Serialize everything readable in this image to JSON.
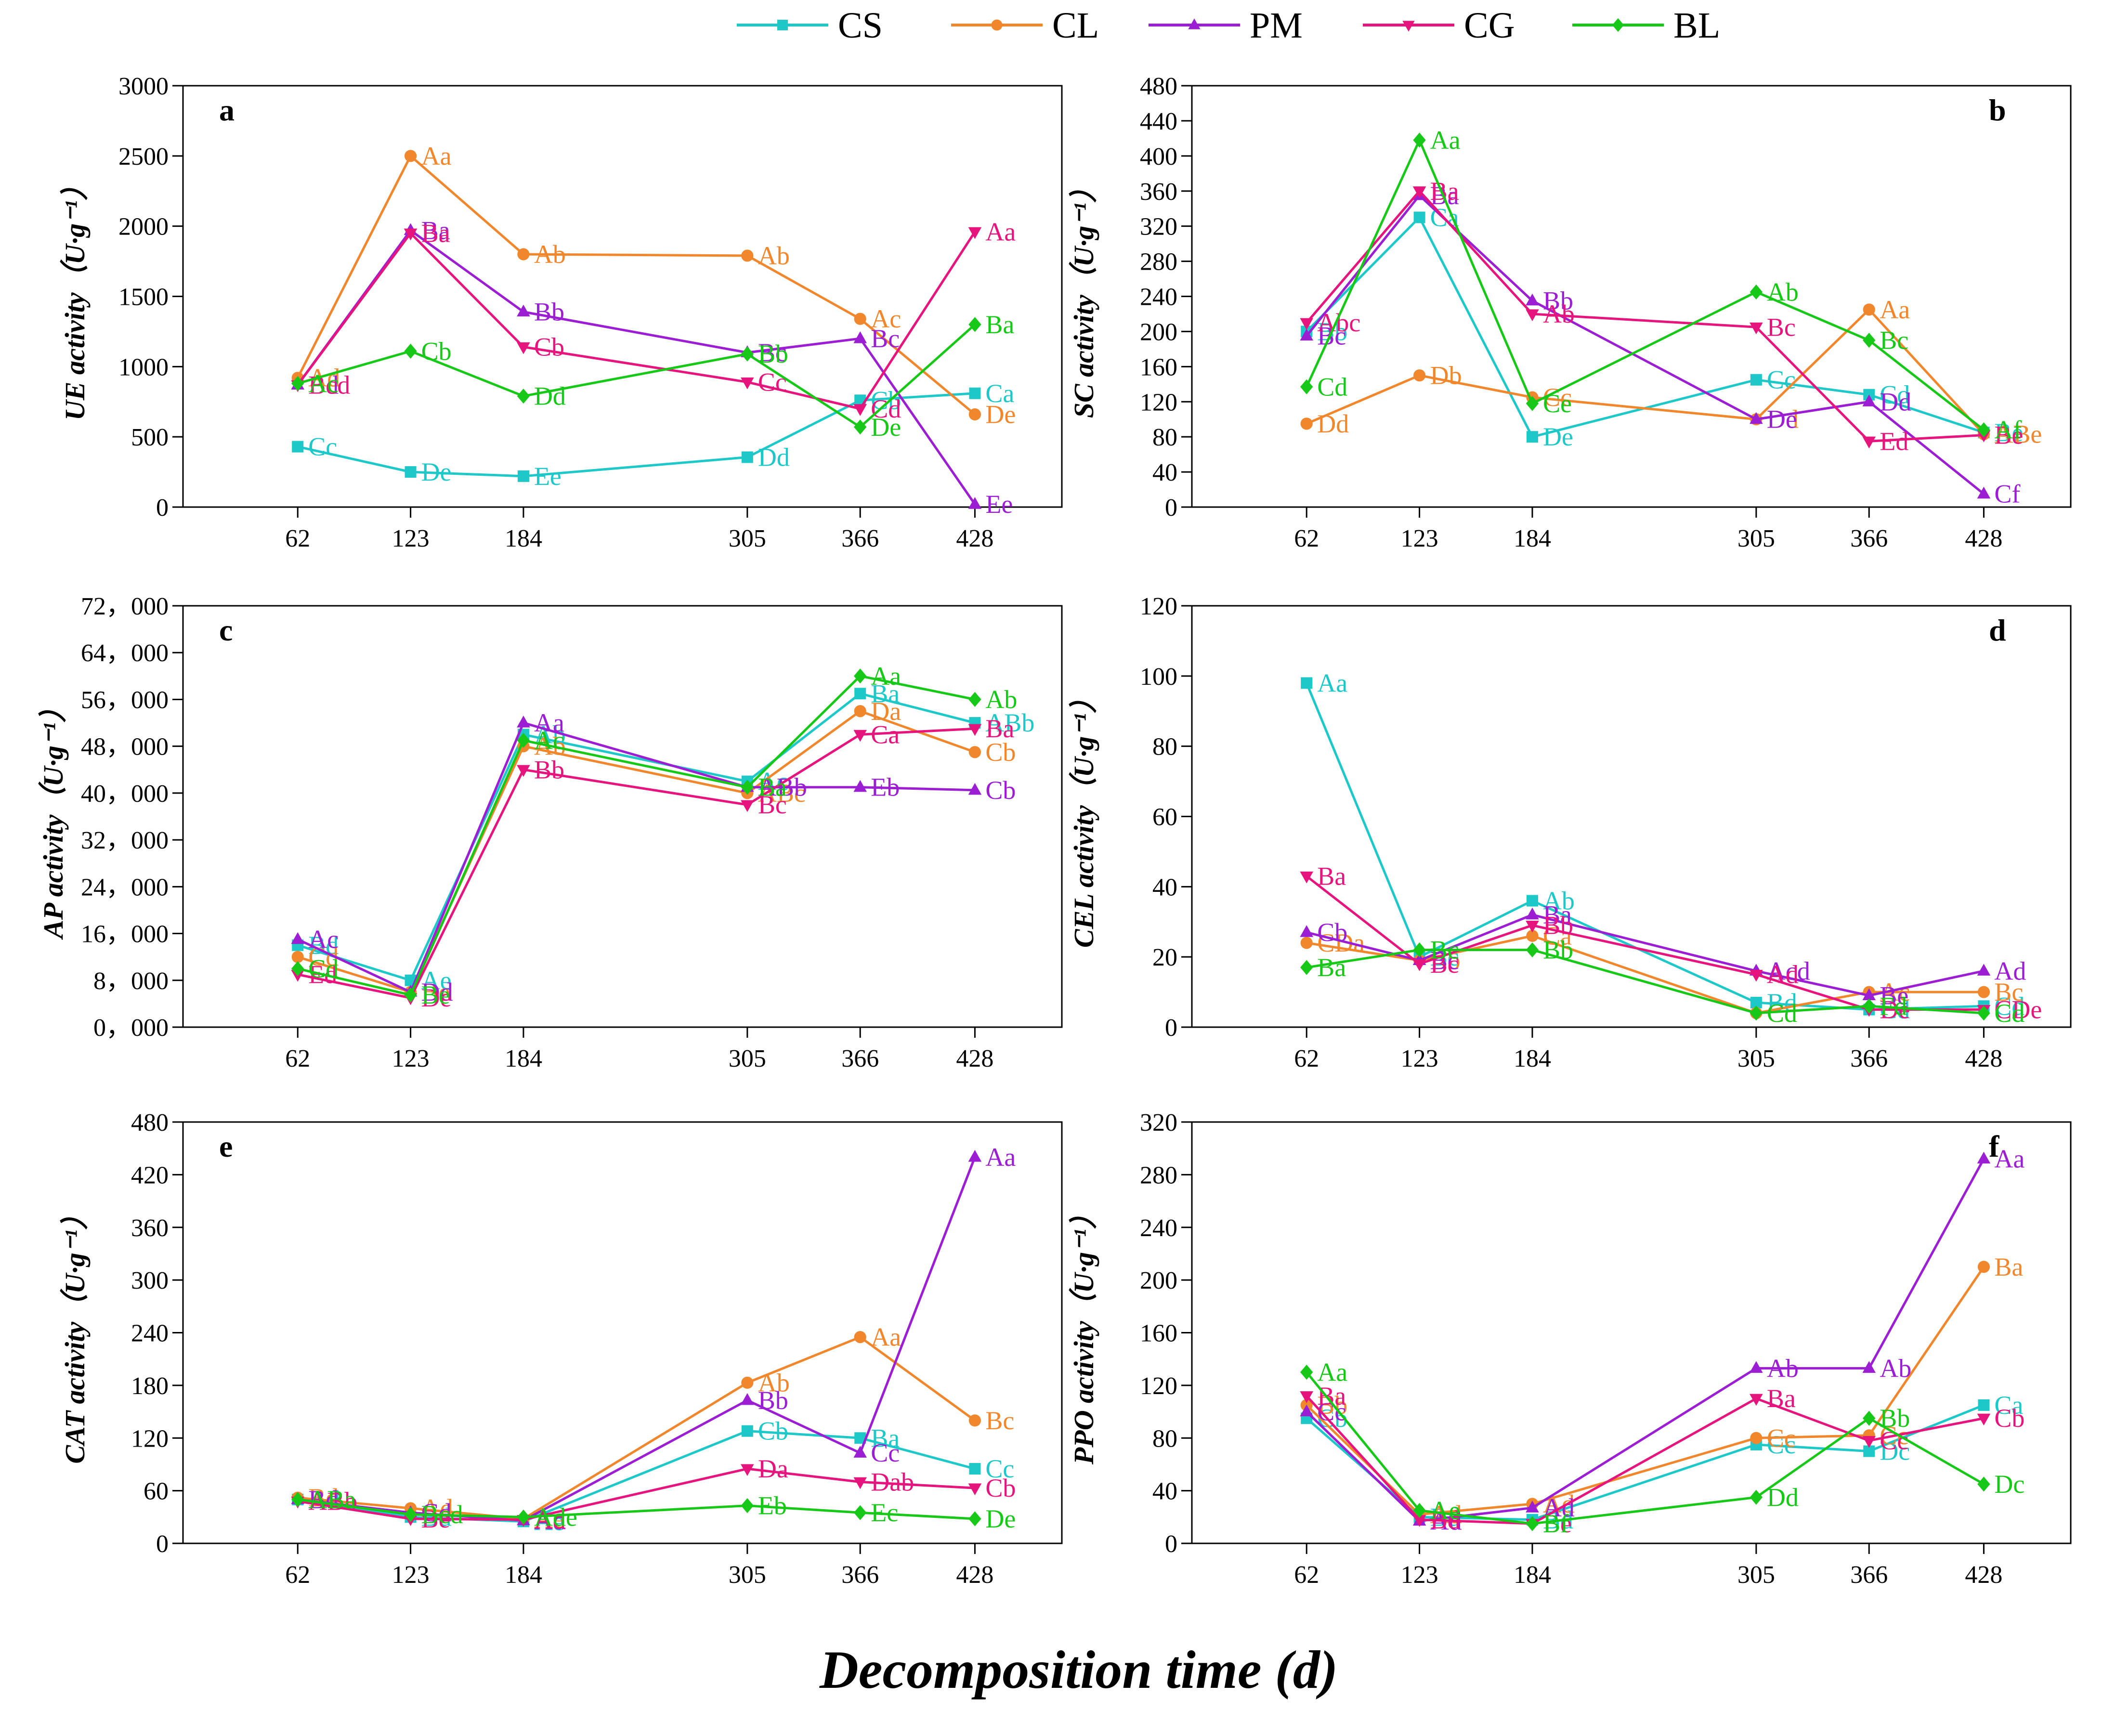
{
  "legend": {
    "items": [
      {
        "name": "CS",
        "color": "#1ec8c8",
        "marker": "square"
      },
      {
        "name": "CL",
        "color": "#f0872d",
        "marker": "circle"
      },
      {
        "name": "PM",
        "color": "#9b1ed2",
        "marker": "triangle-up"
      },
      {
        "name": "CG",
        "color": "#e6147d",
        "marker": "triangle-down"
      },
      {
        "name": "BL",
        "color": "#18c818",
        "marker": "diamond"
      }
    ]
  },
  "xlabel": "Decomposition time (d)",
  "chart_data": [
    {
      "type": "line",
      "panel": "a",
      "ylabel": "UE activity（U·g⁻¹）",
      "x": [
        62,
        123,
        184,
        305,
        366,
        428
      ],
      "xlim": [
        0,
        475
      ],
      "ylim": [
        0,
        3000
      ],
      "yticks": [
        0,
        500,
        1000,
        1500,
        2000,
        2500,
        3000
      ],
      "ytick_labels": [
        "0",
        "500",
        "1000",
        "1500",
        "2000",
        "2500",
        "3000"
      ],
      "series": [
        {
          "name": "CS",
          "values": [
            430,
            250,
            220,
            355,
            760,
            810
          ],
          "labels": [
            "Cc",
            "De",
            "Ee",
            "Dd",
            "Cb",
            "Ca"
          ]
        },
        {
          "name": "CL",
          "values": [
            920,
            2500,
            1800,
            1790,
            1340,
            660
          ],
          "labels": [
            "Ad",
            "Aa",
            "Ab",
            "Ab",
            "Ac",
            "De"
          ]
        },
        {
          "name": "PM",
          "values": [
            870,
            1970,
            1390,
            1100,
            1200,
            20
          ],
          "labels": [
            "Bd",
            "Ba",
            "Bb",
            "Bc",
            "Bc",
            "Ee"
          ]
        },
        {
          "name": "CG",
          "values": [
            870,
            1950,
            1140,
            890,
            700,
            1960
          ],
          "labels": [
            "Bcd",
            "Ba",
            "Cb",
            "Cc",
            "Cd",
            "Aa"
          ]
        },
        {
          "name": "BL",
          "values": [
            880,
            1110,
            790,
            1090,
            570,
            1300
          ],
          "labels": [
            "Ac",
            "Cb",
            "Dd",
            "Bb",
            "De",
            "Ba"
          ]
        }
      ]
    },
    {
      "type": "line",
      "panel": "b",
      "ylabel": "SC activity（U·g⁻¹）",
      "x": [
        62,
        123,
        184,
        305,
        366,
        428
      ],
      "xlim": [
        0,
        475
      ],
      "ylim": [
        0,
        480
      ],
      "yticks": [
        0,
        40,
        80,
        120,
        160,
        200,
        240,
        280,
        320,
        360,
        400,
        440,
        480
      ],
      "ytick_labels": [
        "0",
        "40",
        "80",
        "120",
        "160",
        "200",
        "240",
        "280",
        "320",
        "360",
        "400",
        "440",
        "480"
      ],
      "series": [
        {
          "name": "CS",
          "values": [
            200,
            330,
            80,
            145,
            128,
            85
          ],
          "labels": [
            "Bb",
            "Ca",
            "De",
            "Cc",
            "Cd",
            "Be"
          ]
        },
        {
          "name": "CL",
          "values": [
            95,
            150,
            125,
            100,
            225,
            83
          ],
          "labels": [
            "Dd",
            "Db",
            "Cc",
            "Dd",
            "Aa",
            "ABe"
          ]
        },
        {
          "name": "PM",
          "values": [
            195,
            355,
            235,
            100,
            120,
            15
          ],
          "labels": [
            "Bc",
            "Ba",
            "Bb",
            "De",
            "Dd",
            "Cf"
          ]
        },
        {
          "name": "CG",
          "values": [
            210,
            360,
            220,
            205,
            75,
            82
          ],
          "labels": [
            "Abc",
            "Ba",
            "Ab",
            "Bc",
            "Ed",
            "Be"
          ]
        },
        {
          "name": "BL",
          "values": [
            137,
            418,
            118,
            245,
            190,
            88
          ],
          "labels": [
            "Cd",
            "Aa",
            "Ce",
            "Ab",
            "Bc",
            "Af"
          ]
        }
      ]
    },
    {
      "type": "line",
      "panel": "c",
      "ylabel": "AP activity（U·g⁻¹）",
      "x": [
        62,
        123,
        184,
        305,
        366,
        428
      ],
      "xlim": [
        0,
        475
      ],
      "ylim": [
        0,
        72000
      ],
      "yticks": [
        0,
        8000,
        16000,
        24000,
        32000,
        40000,
        48000,
        56000,
        64000,
        72000
      ],
      "ytick_labels": [
        "0，000",
        "8，000",
        "16，000",
        "24，000",
        "32，000",
        "40，000",
        "48，000",
        "56，000",
        "64，000",
        "72，000"
      ],
      "series": [
        {
          "name": "CS",
          "values": [
            14000,
            8000,
            50000,
            42000,
            57000,
            52000
          ],
          "labels": [
            "Bd",
            "Ae",
            "Ab",
            "Ac",
            "Ba",
            "ABb"
          ]
        },
        {
          "name": "CL",
          "values": [
            12000,
            6000,
            48000,
            40000,
            54000,
            47000
          ],
          "labels": [
            "Cd",
            "Be",
            "Ab",
            "ABc",
            "Da",
            "Cb"
          ]
        },
        {
          "name": "PM",
          "values": [
            15000,
            6000,
            52000,
            41000,
            41000,
            40500
          ],
          "labels": [
            "Ac",
            "Dd",
            "Aa",
            "ABb",
            "Eb",
            "Cb"
          ]
        },
        {
          "name": "CG",
          "values": [
            9000,
            5000,
            44000,
            38000,
            50000,
            51000
          ],
          "labels": [
            "Ed",
            "De",
            "Bb",
            "Bc",
            "Ca",
            "Ba"
          ]
        },
        {
          "name": "BL",
          "values": [
            10000,
            5500,
            49000,
            41000,
            60000,
            56000
          ],
          "labels": [
            "Cd",
            "Be",
            "Ac",
            "Ba",
            "Aa",
            "Ab"
          ]
        }
      ]
    },
    {
      "type": "line",
      "panel": "d",
      "ylabel": "CEL activity（U·g⁻¹）",
      "x": [
        62,
        123,
        184,
        305,
        366,
        428
      ],
      "xlim": [
        0,
        475
      ],
      "ylim": [
        0,
        120
      ],
      "yticks": [
        0,
        20,
        40,
        60,
        80,
        100,
        120
      ],
      "ytick_labels": [
        "0",
        "20",
        "40",
        "60",
        "80",
        "100",
        "120"
      ],
      "series": [
        {
          "name": "CS",
          "values": [
            98,
            20,
            36,
            7,
            5,
            6
          ],
          "labels": [
            "Aa",
            "Bc",
            "Ab",
            "Bd",
            "Cd",
            "Cd"
          ]
        },
        {
          "name": "CL",
          "values": [
            24,
            19,
            26,
            4,
            10,
            10
          ],
          "labels": [
            "CDa",
            "Bb",
            "Ca",
            "Cd",
            "Ac",
            "Bc"
          ]
        },
        {
          "name": "PM",
          "values": [
            27,
            19,
            32,
            16,
            9,
            16
          ],
          "labels": [
            "Cb",
            "Bc",
            "Ba",
            "Acd",
            "Be",
            "Ad"
          ]
        },
        {
          "name": "CG",
          "values": [
            43,
            18,
            29,
            15,
            5,
            5
          ],
          "labels": [
            "Ba",
            "Bc",
            "Bb",
            "Ad",
            "De",
            "CDe"
          ]
        },
        {
          "name": "BL",
          "values": [
            17,
            22,
            22,
            4,
            6,
            4
          ],
          "labels": [
            "Ba",
            "Bc",
            "Bb",
            "Cd",
            "Fd",
            "Cd"
          ]
        }
      ]
    },
    {
      "type": "line",
      "panel": "e",
      "ylabel": "CAT activity（U·g⁻¹）",
      "x": [
        62,
        123,
        184,
        305,
        366,
        428
      ],
      "xlim": [
        0,
        475
      ],
      "ylim": [
        0,
        480
      ],
      "yticks": [
        0,
        60,
        120,
        180,
        240,
        300,
        360,
        420,
        480
      ],
      "ytick_labels": [
        "0",
        "60",
        "120",
        "180",
        "240",
        "300",
        "360",
        "420",
        "480"
      ],
      "series": [
        {
          "name": "CS",
          "values": [
            50,
            30,
            25,
            128,
            120,
            85
          ],
          "labels": [
            "Ad",
            "Bd",
            "Ae",
            "Cb",
            "Ba",
            "Cc"
          ]
        },
        {
          "name": "CL",
          "values": [
            52,
            40,
            28,
            183,
            235,
            140
          ],
          "labels": [
            "Bd",
            "Ad",
            "Ae",
            "Ab",
            "Aa",
            "Bc"
          ]
        },
        {
          "name": "PM",
          "values": [
            50,
            35,
            26,
            163,
            103,
            440
          ],
          "labels": [
            "Bd",
            "Cd",
            "Ad",
            "Bb",
            "Cc",
            "Aa"
          ]
        },
        {
          "name": "CG",
          "values": [
            48,
            28,
            27,
            85,
            70,
            63
          ],
          "labels": [
            "ABb",
            "Be",
            "Ad",
            "Da",
            "Dab",
            "Cb"
          ]
        },
        {
          "name": "BL",
          "values": [
            50,
            33,
            30,
            43,
            35,
            28
          ],
          "labels": [
            "ABa",
            "Bcd",
            "Ade",
            "Eb",
            "Ec",
            "De"
          ]
        }
      ]
    },
    {
      "type": "line",
      "panel": "f",
      "ylabel": "PPO activity（U·g⁻¹）",
      "x": [
        62,
        123,
        184,
        305,
        366,
        428
      ],
      "xlim": [
        0,
        475
      ],
      "ylim": [
        0,
        320
      ],
      "yticks": [
        0,
        40,
        80,
        120,
        160,
        200,
        240,
        280,
        320
      ],
      "ytick_labels": [
        "0",
        "40",
        "80",
        "120",
        "160",
        "200",
        "240",
        "280",
        "320"
      ],
      "series": [
        {
          "name": "CS",
          "values": [
            95,
            20,
            18,
            75,
            70,
            105
          ],
          "labels": [
            "Cb",
            "Bd",
            "Bd",
            "Cc",
            "Dc",
            "Ca"
          ]
        },
        {
          "name": "CL",
          "values": [
            105,
            22,
            30,
            80,
            82,
            210
          ],
          "labels": [
            "Bb",
            "Ad",
            "Ad",
            "Cc",
            "Cc",
            "Ba"
          ]
        },
        {
          "name": "PM",
          "values": [
            100,
            17,
            27,
            133,
            133,
            292
          ],
          "labels": [
            "Cc",
            "Ad",
            "Ad",
            "Ab",
            "Ab",
            "Aa"
          ]
        },
        {
          "name": "CG",
          "values": [
            112,
            18,
            15,
            110,
            78,
            95
          ],
          "labels": [
            "Ba",
            "Bd",
            "Be",
            "Ba",
            "Cc",
            "Cb"
          ]
        },
        {
          "name": "BL",
          "values": [
            130,
            25,
            15,
            35,
            95,
            45
          ],
          "labels": [
            "Aa",
            "Ae",
            "Bf",
            "Dd",
            "Bb",
            "Dc"
          ]
        }
      ]
    }
  ]
}
